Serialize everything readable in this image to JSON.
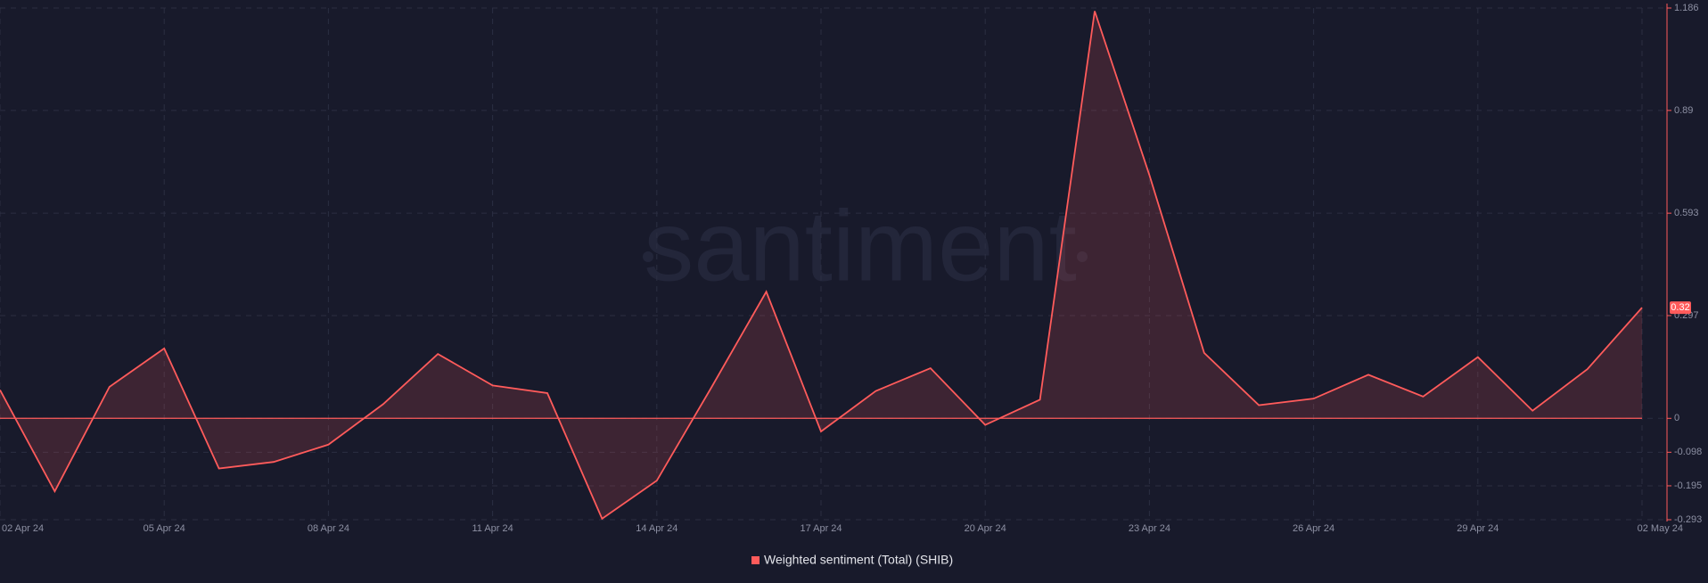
{
  "chart_data": {
    "type": "line",
    "watermark": "santiment",
    "categories": [
      "02 Apr 24",
      null,
      null,
      "05 Apr 24",
      null,
      null,
      "08 Apr 24",
      null,
      null,
      "11 Apr 24",
      null,
      null,
      "14 Apr 24",
      null,
      null,
      "17 Apr 24",
      null,
      null,
      "20 Apr 24",
      null,
      null,
      "23 Apr 24",
      null,
      null,
      "26 Apr 24",
      null,
      null,
      "29 Apr 24",
      null,
      null,
      "02 May 24"
    ],
    "series": [
      {
        "name": "Weighted sentiment (Total) (SHIB)",
        "color": "#ff5b5b",
        "values": [
          0.082,
          -0.211,
          0.091,
          0.202,
          -0.145,
          -0.126,
          -0.076,
          0.041,
          0.186,
          0.095,
          0.073,
          -0.29,
          -0.18,
          0.09,
          0.366,
          -0.038,
          0.079,
          0.145,
          -0.019,
          0.054,
          1.177,
          0.703,
          0.189,
          0.038,
          0.057,
          0.126,
          0.063,
          0.177,
          0.022,
          0.142,
          0.32
        ]
      }
    ],
    "ylim": [
      -0.293,
      1.186
    ],
    "yticks": [
      1.186,
      0.89,
      0.593,
      0.297,
      0,
      -0.098,
      -0.195,
      -0.293
    ],
    "grid": true
  }
}
